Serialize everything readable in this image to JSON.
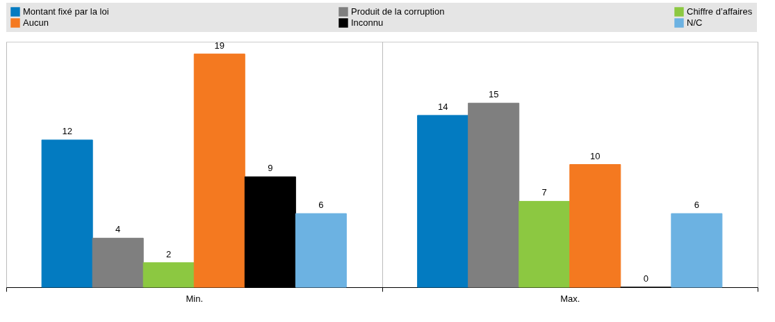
{
  "chart_data": {
    "type": "bar",
    "categories": [
      "Min.",
      "Max."
    ],
    "series": [
      {
        "name": "Montant fixé par la loi",
        "color": "#037bc1",
        "values": [
          12,
          14
        ]
      },
      {
        "name": "Produit de la corruption",
        "color": "#7f7f7f",
        "values": [
          4,
          15
        ]
      },
      {
        "name": "Chiffre d’affaires",
        "color": "#8cc841",
        "values": [
          2,
          7
        ]
      },
      {
        "name": "Aucun",
        "color": "#f47920",
        "values": [
          19,
          10
        ]
      },
      {
        "name": "Inconnu",
        "color": "#000000",
        "values": [
          9,
          0
        ]
      },
      {
        "name": "N/C",
        "color": "#6cb2e2",
        "values": [
          6,
          6
        ]
      }
    ],
    "ylim": [
      0,
      20
    ],
    "tick_labels": "x",
    "data_labels": true,
    "legend": "top"
  }
}
